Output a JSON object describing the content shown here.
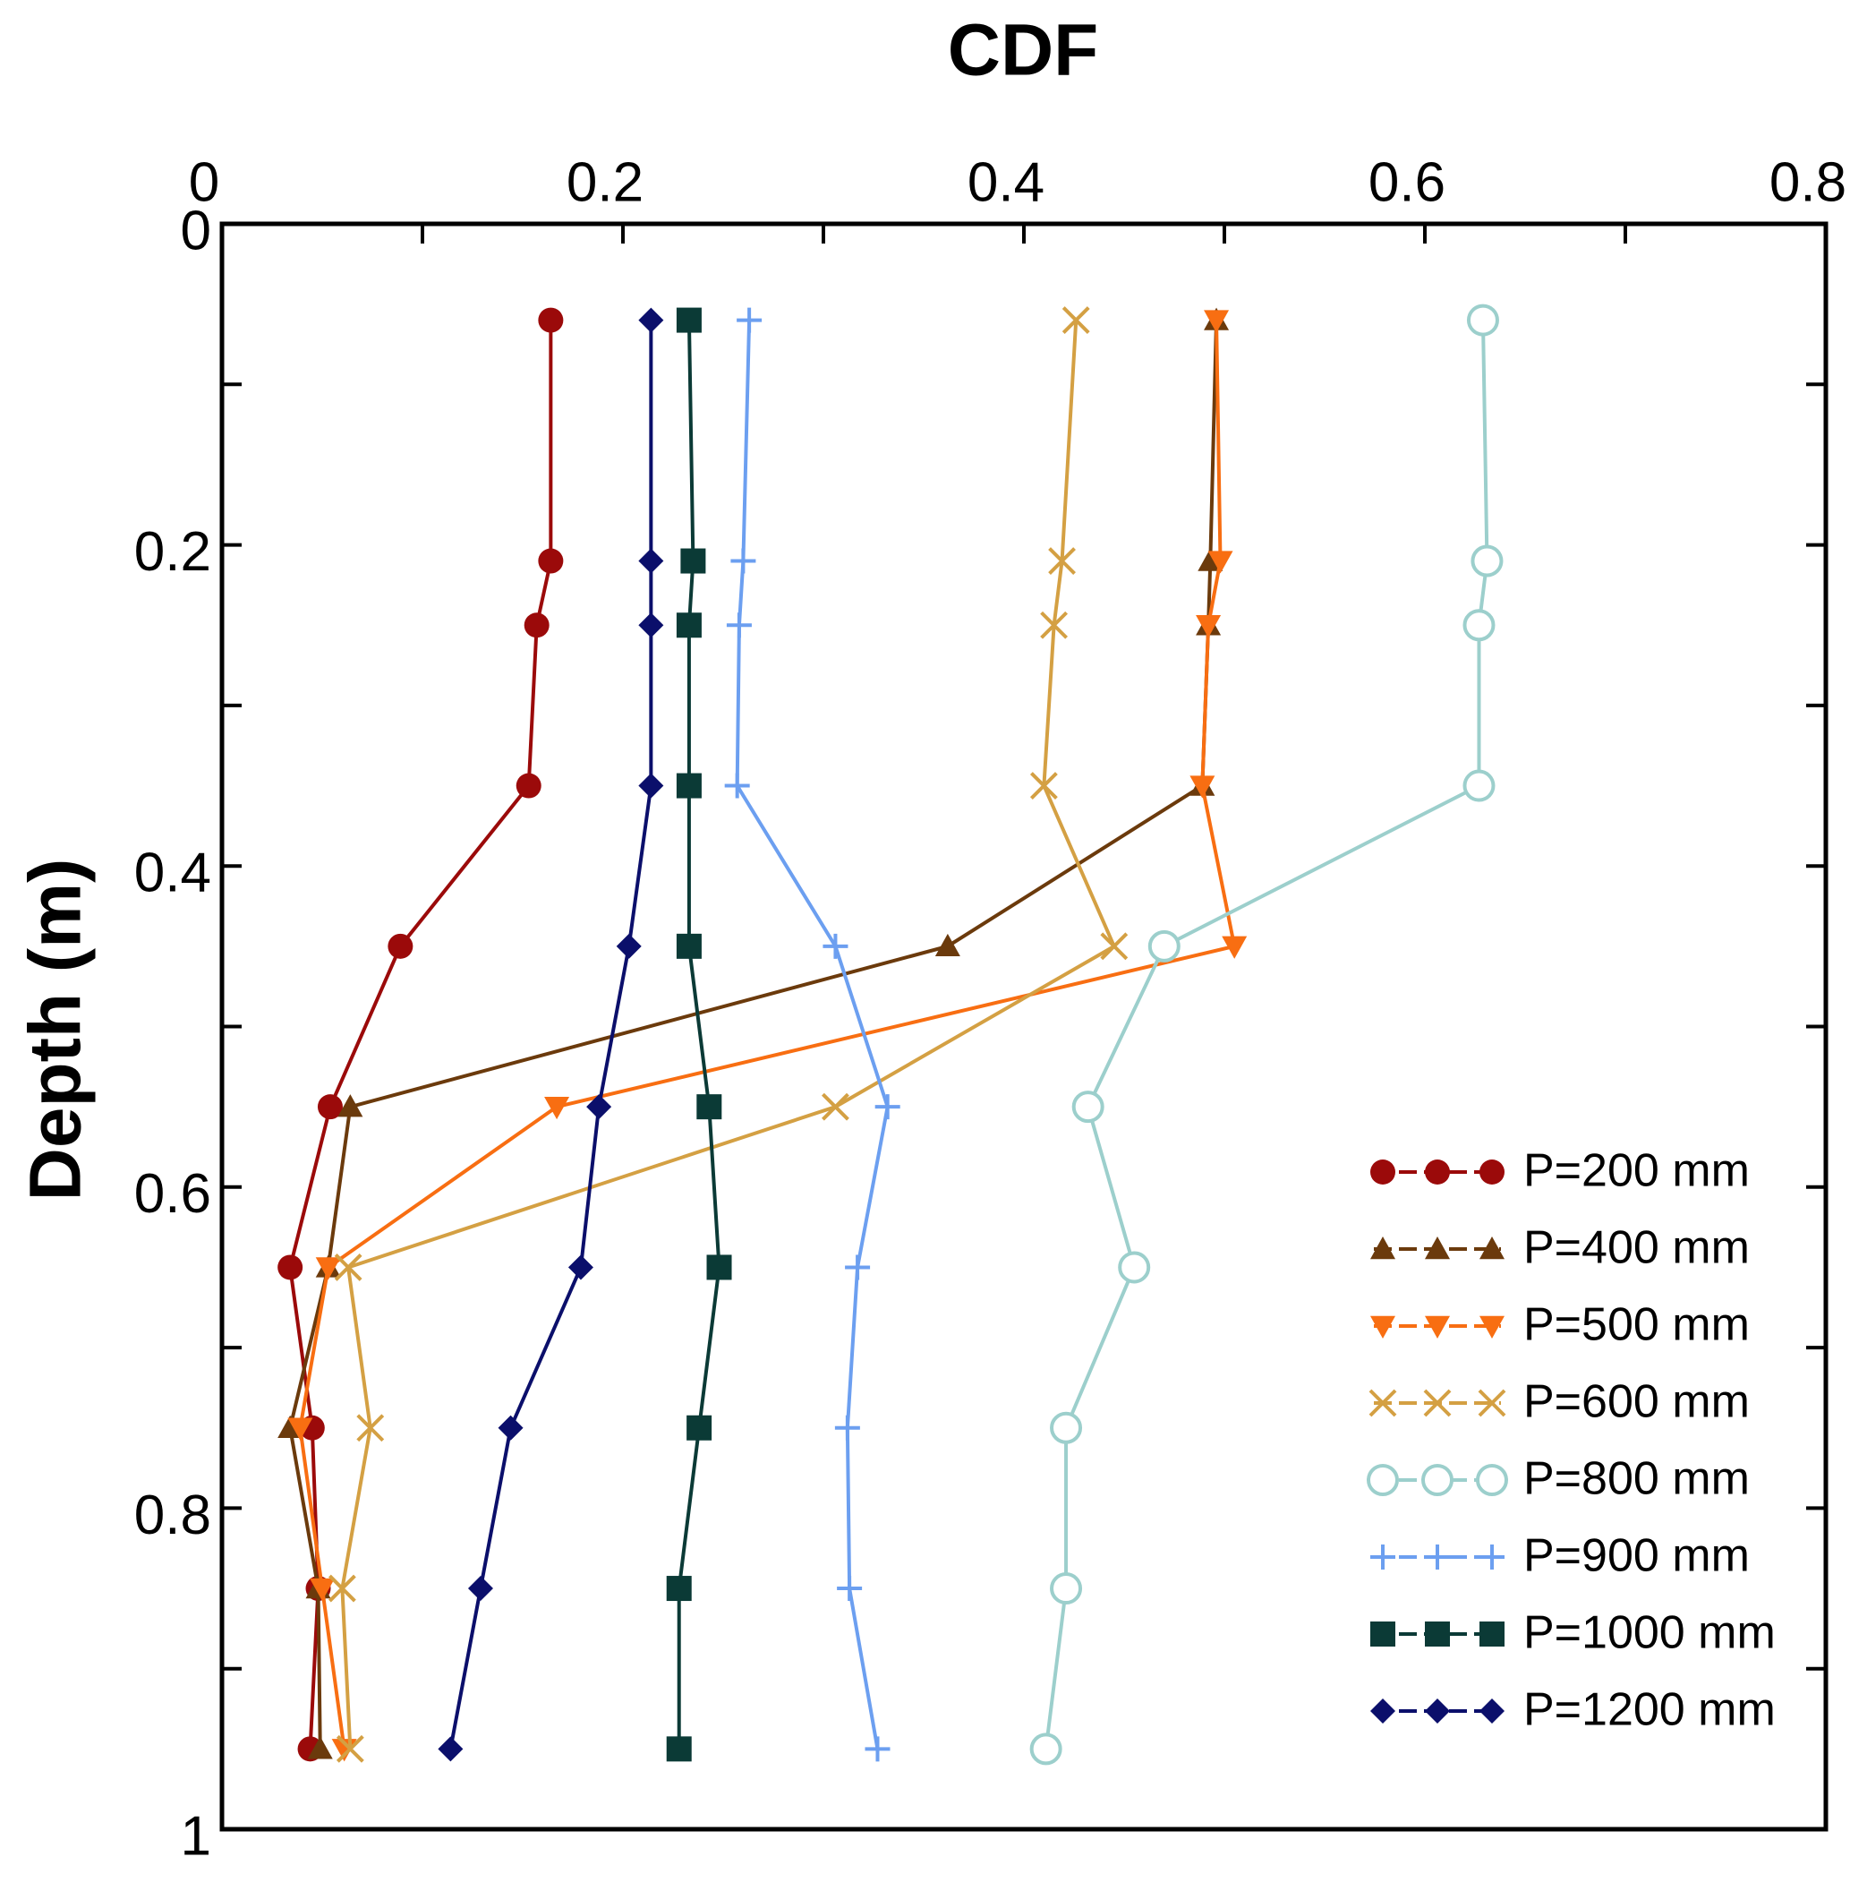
{
  "chart_data": {
    "type": "line",
    "title": "CDF",
    "y_label": "Depth (m)",
    "x_axis_side": "top",
    "y_inverted": true,
    "y": [
      0.06,
      0.21,
      0.25,
      0.35,
      0.45,
      0.55,
      0.65,
      0.75,
      0.85,
      0.95
    ],
    "xlim": [
      0,
      0.8
    ],
    "xticks": [
      0,
      0.2,
      0.4,
      0.6,
      0.8
    ],
    "ylim": [
      0,
      1
    ],
    "yticks": [
      0,
      0.2,
      0.4,
      0.6,
      0.8,
      1
    ],
    "legend": "lower right",
    "series": [
      {
        "name": "P=200 mm",
        "color": "#9b0a0a",
        "marker": "circle",
        "values": [
          0.164,
          0.164,
          0.157,
          0.153,
          0.089,
          0.054,
          0.034,
          0.045,
          0.048,
          0.044
        ]
      },
      {
        "name": "P=400 mm",
        "color": "#6b3a0c",
        "marker": "triangle-up",
        "values": [
          0.496,
          0.493,
          0.492,
          0.489,
          0.362,
          0.064,
          0.053,
          0.034,
          0.048,
          0.049
        ]
      },
      {
        "name": "P=500 mm",
        "color": "#f86e12",
        "marker": "triangle-down",
        "values": [
          0.496,
          0.498,
          0.492,
          0.489,
          0.505,
          0.167,
          0.053,
          0.039,
          0.05,
          0.061
        ]
      },
      {
        "name": "P=600 mm",
        "color": "#d4a043",
        "marker": "x",
        "values": [
          0.426,
          0.419,
          0.415,
          0.41,
          0.445,
          0.306,
          0.063,
          0.074,
          0.06,
          0.064
        ]
      },
      {
        "name": "P=800 mm",
        "color": "#9ccfcc",
        "marker": "open-circle",
        "values": [
          0.629,
          0.631,
          0.627,
          0.627,
          0.47,
          0.432,
          0.455,
          0.421,
          0.421,
          0.411
        ]
      },
      {
        "name": "P=900 mm",
        "color": "#6c9ff0",
        "marker": "plus",
        "values": [
          0.263,
          0.26,
          0.258,
          0.257,
          0.306,
          0.332,
          0.317,
          0.312,
          0.313,
          0.327
        ]
      },
      {
        "name": "P=1000 mm",
        "color": "#0b3a36",
        "marker": "square",
        "values": [
          0.233,
          0.235,
          0.233,
          0.233,
          0.233,
          0.243,
          0.248,
          0.238,
          0.228,
          0.228
        ]
      },
      {
        "name": "P=1200 mm",
        "color": "#0b0f6b",
        "marker": "diamond",
        "values": [
          0.214,
          0.214,
          0.214,
          0.214,
          0.203,
          0.188,
          0.179,
          0.144,
          0.129,
          0.114
        ]
      }
    ]
  }
}
